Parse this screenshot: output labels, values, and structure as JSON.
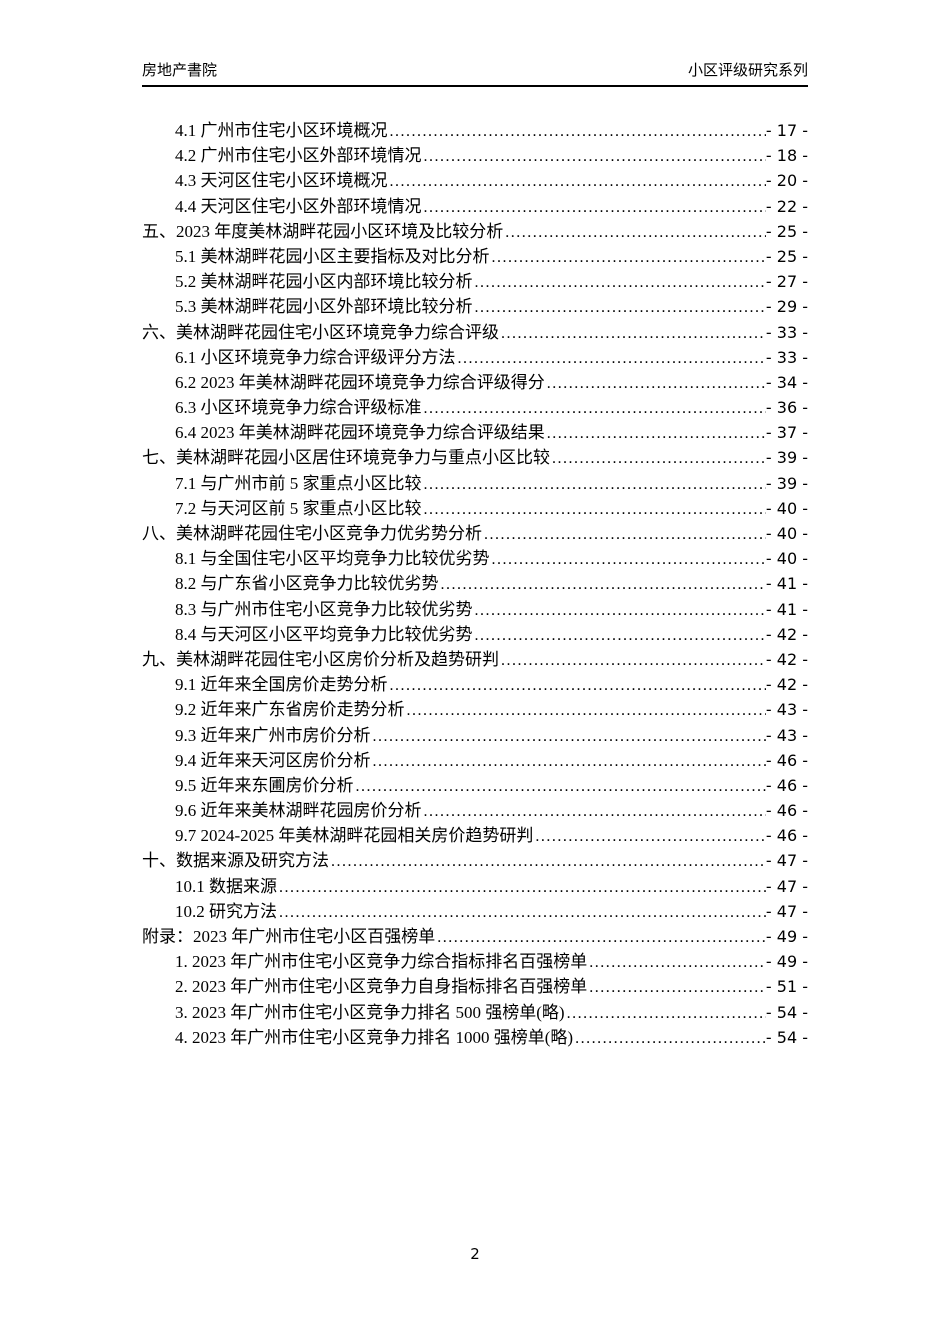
{
  "header": {
    "left_title": "房地产書院",
    "right_title": "小区评级研究系列"
  },
  "toc": {
    "entries": [
      {
        "level": 2,
        "title": "4.1 广州市住宅小区环境概况",
        "page": "- 17 -"
      },
      {
        "level": 2,
        "title": "4.2 广州市住宅小区外部环境情况",
        "page": "- 18 -"
      },
      {
        "level": 2,
        "title": "4.3 天河区住宅小区环境概况",
        "page": "- 20 -"
      },
      {
        "level": 2,
        "title": "4.4 天河区住宅小区外部环境情况",
        "page": "- 22 -"
      },
      {
        "level": 1,
        "title": "五、2023 年度美林湖畔花园小区环境及比较分析",
        "page": "- 25 -"
      },
      {
        "level": 2,
        "title": "5.1 美林湖畔花园小区主要指标及对比分析",
        "page": "- 25 -"
      },
      {
        "level": 2,
        "title": "5.2 美林湖畔花园小区内部环境比较分析",
        "page": "- 27 -"
      },
      {
        "level": 2,
        "title": "5.3 美林湖畔花园小区外部环境比较分析",
        "page": "- 29 -"
      },
      {
        "level": 1,
        "title": "六、美林湖畔花园住宅小区环境竞争力综合评级",
        "page": "- 33 -"
      },
      {
        "level": 2,
        "title": "6.1 小区环境竞争力综合评级评分方法",
        "page": "- 33 -"
      },
      {
        "level": 2,
        "title": "6.2 2023 年美林湖畔花园环境竞争力综合评级得分",
        "page": "- 34 -"
      },
      {
        "level": 2,
        "title": "6.3 小区环境竞争力综合评级标准",
        "page": "- 36 -"
      },
      {
        "level": 2,
        "title": "6.4 2023 年美林湖畔花园环境竞争力综合评级结果",
        "page": "- 37 -"
      },
      {
        "level": 1,
        "title": "七、美林湖畔花园小区居住环境竞争力与重点小区比较",
        "page": "- 39 -"
      },
      {
        "level": 2,
        "title": "7.1 与广州市前 5 家重点小区比较",
        "page": "- 39 -"
      },
      {
        "level": 2,
        "title": "7.2 与天河区前 5 家重点小区比较",
        "page": "- 40 -"
      },
      {
        "level": 1,
        "title": "八、美林湖畔花园住宅小区竞争力优劣势分析",
        "page": "- 40 -"
      },
      {
        "level": 2,
        "title": "8.1 与全国住宅小区平均竞争力比较优劣势",
        "page": "- 40 -"
      },
      {
        "level": 2,
        "title": "8.2 与广东省小区竞争力比较优劣势",
        "page": "- 41 -"
      },
      {
        "level": 2,
        "title": "8.3 与广州市住宅小区竞争力比较优劣势",
        "page": "- 41 -"
      },
      {
        "level": 2,
        "title": "8.4 与天河区小区平均竞争力比较优劣势",
        "page": "- 42 -"
      },
      {
        "level": 1,
        "title": "九、美林湖畔花园住宅小区房价分析及趋势研判",
        "page": "- 42 -"
      },
      {
        "level": 2,
        "title": "9.1 近年来全国房价走势分析",
        "page": "- 42 -"
      },
      {
        "level": 2,
        "title": "9.2 近年来广东省房价走势分析",
        "page": "- 43 -"
      },
      {
        "level": 2,
        "title": "9.3 近年来广州市房价分析",
        "page": "- 43 -"
      },
      {
        "level": 2,
        "title": "9.4 近年来天河区房价分析",
        "page": "- 46 -"
      },
      {
        "level": 2,
        "title": "9.5 近年来东圃房价分析",
        "page": "- 46 -"
      },
      {
        "level": 2,
        "title": "9.6 近年来美林湖畔花园房价分析",
        "page": "- 46 -"
      },
      {
        "level": 2,
        "title": "9.7 2024-2025 年美林湖畔花园相关房价趋势研判",
        "page": "- 46 -"
      },
      {
        "level": 1,
        "title": "十、数据来源及研究方法",
        "page": "- 47 -"
      },
      {
        "level": 2,
        "title": "10.1 数据来源",
        "page": "- 47 -"
      },
      {
        "level": 2,
        "title": "10.2 研究方法",
        "page": "- 47 -"
      },
      {
        "level": 1,
        "title": "附录：2023 年广州市住宅小区百强榜单",
        "page": "- 49 -"
      },
      {
        "level": 2,
        "title": "1. 2023 年广州市住宅小区竞争力综合指标排名百强榜单",
        "page": "- 49 -"
      },
      {
        "level": 2,
        "title": "2. 2023 年广州市住宅小区竞争力自身指标排名百强榜单",
        "page": "- 51 -"
      },
      {
        "level": 2,
        "title": "3. 2023 年广州市住宅小区竞争力排名 500 强榜单(略)",
        "page": "- 54 -"
      },
      {
        "level": 2,
        "title": "4. 2023 年广州市住宅小区竞争力排名 1000 强榜单(略)",
        "page": "- 54 -"
      }
    ]
  },
  "footer": {
    "page_number": "2"
  }
}
